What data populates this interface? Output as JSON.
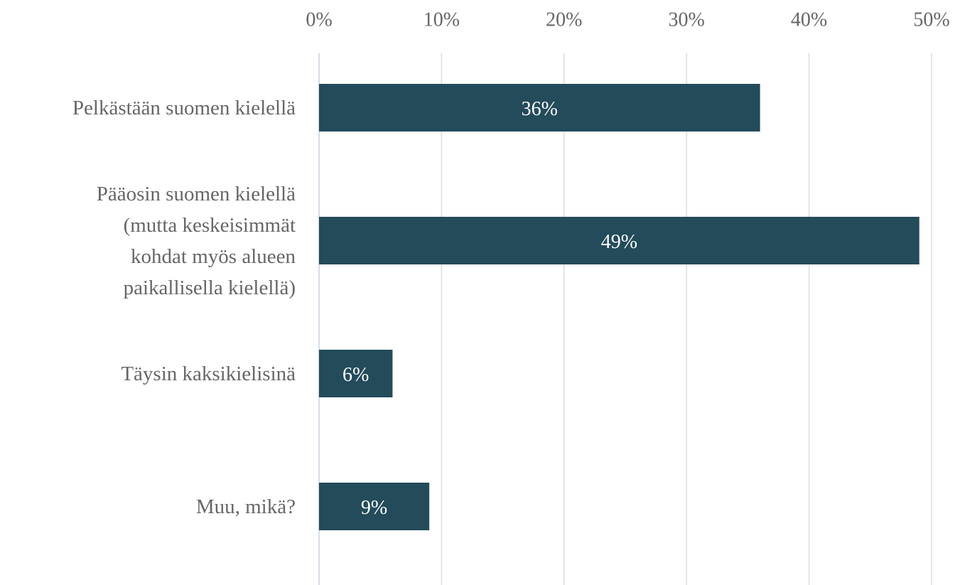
{
  "chart_data": {
    "type": "bar",
    "orientation": "horizontal",
    "categories": [
      "Pelkästään suomen kielellä",
      "Pääosin suomen kielellä\n(mutta keskeisimmät\nkohdat myös alueen\npaikallisella kielellä)",
      "Täysin kaksikielisinä",
      "Muu, mikä?"
    ],
    "values": [
      36,
      49,
      6,
      9
    ],
    "value_labels": [
      "36%",
      "49%",
      "6%",
      "9%"
    ],
    "color": "#234b5a",
    "xlim": [
      0,
      50
    ],
    "xticks": [
      {
        "value": 0,
        "label": "0%"
      },
      {
        "value": 10,
        "label": "10%"
      },
      {
        "value": 20,
        "label": "20%"
      },
      {
        "value": 30,
        "label": "30%"
      },
      {
        "value": 40,
        "label": "40%"
      },
      {
        "value": 50,
        "label": "50%"
      }
    ],
    "grid": true
  }
}
